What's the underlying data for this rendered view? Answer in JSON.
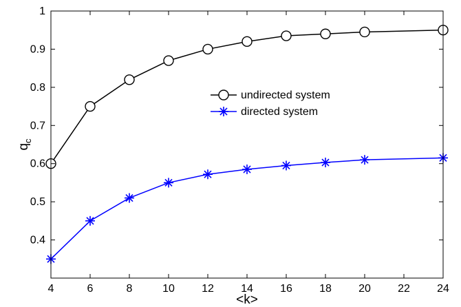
{
  "chart_data": {
    "type": "line",
    "title": "",
    "xlabel": "<k>",
    "ylabel": "q",
    "ylabel_subscript": "c",
    "xlim": [
      4,
      24
    ],
    "ylim": [
      0.3,
      1.0
    ],
    "xticks": [
      "4",
      "6",
      "8",
      "10",
      "12",
      "14",
      "16",
      "18",
      "20",
      "22",
      "24"
    ],
    "yticks": [
      "0.4",
      "0.5",
      "0.6",
      "0.7",
      "0.8",
      "0.9",
      "1"
    ],
    "grid": false,
    "legend_position": "center-right",
    "series": [
      {
        "name": "undirected system",
        "color": "#000000",
        "marker": "circle",
        "x": [
          4,
          6,
          8,
          10,
          12,
          14,
          16,
          18,
          20,
          24
        ],
        "values": [
          0.6,
          0.75,
          0.82,
          0.87,
          0.9,
          0.92,
          0.935,
          0.94,
          0.945,
          0.95
        ]
      },
      {
        "name": "directed system",
        "color": "#0000ff",
        "marker": "asterisk",
        "x": [
          4,
          6,
          8,
          10,
          12,
          14,
          16,
          18,
          20,
          24
        ],
        "values": [
          0.35,
          0.45,
          0.51,
          0.55,
          0.572,
          0.585,
          0.595,
          0.603,
          0.61,
          0.615
        ]
      }
    ]
  }
}
